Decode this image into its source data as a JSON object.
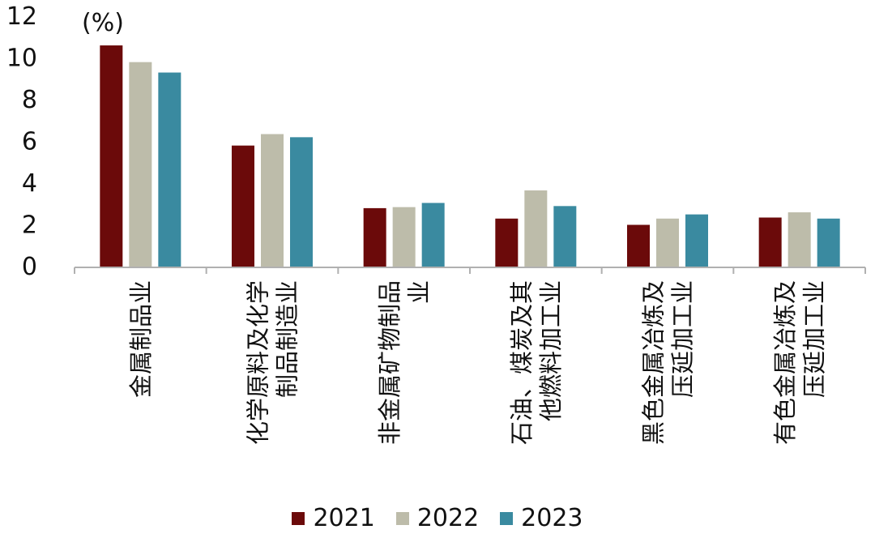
{
  "chart_data": {
    "type": "bar",
    "unit_label": "(%)",
    "categories": [
      [
        "金属制品业"
      ],
      [
        "化学原料及化学",
        "制品制造业"
      ],
      [
        "非金属矿物制品",
        "业"
      ],
      [
        "石油、煤炭及其",
        "他燃料加工业"
      ],
      [
        "黑色金属冶炼及",
        "压延加工业"
      ],
      [
        "有色金属冶炼及",
        "压延加工业"
      ]
    ],
    "series": [
      {
        "name": "2021",
        "color": "#6b0a0a",
        "values": [
          10.6,
          5.8,
          2.8,
          2.3,
          2.0,
          2.35
        ]
      },
      {
        "name": "2022",
        "color": "#bdbcaa",
        "values": [
          9.8,
          6.35,
          2.85,
          3.65,
          2.3,
          2.6
        ]
      },
      {
        "name": "2023",
        "color": "#3a8aa0",
        "values": [
          9.3,
          6.2,
          3.05,
          2.9,
          2.5,
          2.3
        ]
      }
    ],
    "ylim": [
      0,
      12
    ],
    "yticks": [
      "0",
      "2",
      "4",
      "6",
      "8",
      "10",
      "12"
    ],
    "grid": false,
    "legend_position": "bottom"
  }
}
